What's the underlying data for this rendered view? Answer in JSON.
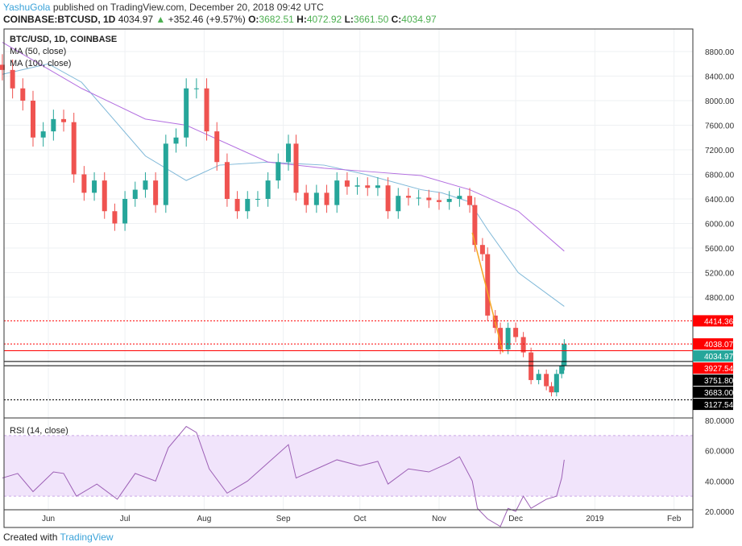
{
  "header": {
    "author": "YashuGola",
    "published": "published on TradingView.com, December 20, 2018 09:42 UTC",
    "symbol": "COINBASE:BTCUSD, 1D",
    "last": "4034.97",
    "change": "+352.46 (+9.57%)",
    "o_label": "O:",
    "o": "3682.51",
    "h_label": "H:",
    "h": "4072.92",
    "l_label": "L:",
    "l": "3661.50",
    "c_label": "C:",
    "c": "4034.97"
  },
  "legend": {
    "title": "BTC/USD, 1D, COINBASE",
    "ma50": "MA (50, close)",
    "ma100": "MA (100, close)",
    "rsi": "RSI (14, close)"
  },
  "footer": {
    "created": "Created with",
    "brand": "TradingView"
  },
  "colors": {
    "up": "#26a69a",
    "down": "#ef5350",
    "ma50": "#7fb8d8",
    "ma100": "#b36fe0",
    "rsi": "#9c5fb5",
    "rsi_band": "#f1e4fb",
    "level_red": "#ff0000",
    "level_black": "#000000",
    "trend": "#f5a623"
  },
  "chart_data": [
    {
      "type": "candlestick",
      "title": "BTC/USD, 1D, COINBASE",
      "ylim": [
        2900,
        9200
      ],
      "y_ticks": [
        "8800.00",
        "8400.00",
        "8000.00",
        "7600.00",
        "7200.00",
        "6800.00",
        "6400.00",
        "6000.00",
        "5600.00",
        "5200.00",
        "4800.00"
      ],
      "x_ticks": [
        "Jun",
        "Jul",
        "Aug",
        "Sep",
        "Oct",
        "Nov",
        "Dec",
        "2019",
        "Feb"
      ],
      "x_tick_dates": [
        "2018-06-01",
        "2018-07-01",
        "2018-08-01",
        "2018-09-01",
        "2018-10-01",
        "2018-11-01",
        "2018-12-01",
        "2019-01-01",
        "2019-02-01"
      ],
      "xlim": [
        "2018-05-14",
        "2019-02-20"
      ],
      "grid": true,
      "closes": [
        [
          "2018-05-14",
          8500
        ],
        [
          "2018-05-18",
          8200
        ],
        [
          "2018-05-22",
          8000
        ],
        [
          "2018-05-26",
          7400
        ],
        [
          "2018-05-30",
          7500
        ],
        [
          "2018-06-03",
          7700
        ],
        [
          "2018-06-07",
          7650
        ],
        [
          "2018-06-11",
          6800
        ],
        [
          "2018-06-15",
          6500
        ],
        [
          "2018-06-19",
          6700
        ],
        [
          "2018-06-23",
          6200
        ],
        [
          "2018-06-27",
          6000
        ],
        [
          "2018-07-01",
          6400
        ],
        [
          "2018-07-05",
          6550
        ],
        [
          "2018-07-09",
          6700
        ],
        [
          "2018-07-13",
          6300
        ],
        [
          "2018-07-17",
          7300
        ],
        [
          "2018-07-21",
          7400
        ],
        [
          "2018-07-25",
          8200
        ],
        [
          "2018-07-29",
          8200
        ],
        [
          "2018-08-02",
          7500
        ],
        [
          "2018-08-06",
          7000
        ],
        [
          "2018-08-10",
          6400
        ],
        [
          "2018-08-14",
          6200
        ],
        [
          "2018-08-18",
          6400
        ],
        [
          "2018-08-22",
          6400
        ],
        [
          "2018-08-26",
          6700
        ],
        [
          "2018-08-30",
          7000
        ],
        [
          "2018-09-03",
          7300
        ],
        [
          "2018-09-06",
          6500
        ],
        [
          "2018-09-10",
          6300
        ],
        [
          "2018-09-14",
          6500
        ],
        [
          "2018-09-18",
          6300
        ],
        [
          "2018-09-22",
          6700
        ],
        [
          "2018-09-26",
          6600
        ],
        [
          "2018-09-30",
          6620
        ],
        [
          "2018-10-04",
          6580
        ],
        [
          "2018-10-08",
          6620
        ],
        [
          "2018-10-12",
          6200
        ],
        [
          "2018-10-16",
          6450
        ],
        [
          "2018-10-20",
          6420
        ],
        [
          "2018-10-24",
          6420
        ],
        [
          "2018-10-28",
          6380
        ],
        [
          "2018-11-01",
          6350
        ],
        [
          "2018-11-05",
          6400
        ],
        [
          "2018-11-09",
          6450
        ],
        [
          "2018-11-13",
          6300
        ],
        [
          "2018-11-15",
          5650
        ],
        [
          "2018-11-18",
          5500
        ],
        [
          "2018-11-20",
          4500
        ],
        [
          "2018-11-23",
          4300
        ],
        [
          "2018-11-25",
          3950
        ],
        [
          "2018-11-28",
          4300
        ],
        [
          "2018-12-01",
          4150
        ],
        [
          "2018-12-04",
          3900
        ],
        [
          "2018-12-07",
          3450
        ],
        [
          "2018-12-10",
          3550
        ],
        [
          "2018-12-13",
          3350
        ],
        [
          "2018-12-15",
          3250
        ],
        [
          "2018-12-17",
          3550
        ],
        [
          "2018-12-19",
          3682.51
        ],
        [
          "2018-12-20",
          4034.97
        ]
      ],
      "series": [
        {
          "name": "MA (50, close)",
          "points": [
            [
              "2018-05-14",
              8430
            ],
            [
              "2018-06-01",
              8600
            ],
            [
              "2018-06-14",
              8300
            ],
            [
              "2018-07-09",
              7100
            ],
            [
              "2018-07-25",
              6700
            ],
            [
              "2018-08-07",
              6950
            ],
            [
              "2018-08-26",
              7000
            ],
            [
              "2018-09-17",
              6950
            ],
            [
              "2018-10-03",
              6800
            ],
            [
              "2018-10-25",
              6550
            ],
            [
              "2018-11-02",
              6500
            ],
            [
              "2018-11-13",
              6350
            ],
            [
              "2018-11-20",
              5900
            ],
            [
              "2018-12-02",
              5200
            ],
            [
              "2018-12-20",
              4650
            ]
          ]
        },
        {
          "name": "MA (100, close)",
          "points": [
            [
              "2018-05-14",
              8950
            ],
            [
              "2018-06-14",
              8200
            ],
            [
              "2018-07-09",
              7700
            ],
            [
              "2018-07-25",
              7600
            ],
            [
              "2018-08-26",
              7000
            ],
            [
              "2018-09-17",
              6900
            ],
            [
              "2018-10-03",
              6850
            ],
            [
              "2018-10-25",
              6780
            ],
            [
              "2018-11-13",
              6550
            ],
            [
              "2018-12-02",
              6200
            ],
            [
              "2018-12-20",
              5550
            ]
          ]
        }
      ],
      "levels": [
        {
          "value": "4414.36",
          "color": "#ff0000",
          "style": "dotted"
        },
        {
          "value": "4038.07",
          "color": "#ff0000",
          "style": "dotted"
        },
        {
          "value": "3927.54",
          "color": "#ff0000",
          "style": "solid"
        },
        {
          "value": "3751.80",
          "color": "#000000",
          "style": "solid"
        },
        {
          "value": "3683.00",
          "color": "#000000",
          "style": "solid"
        },
        {
          "value": "3127.54",
          "color": "#000000",
          "style": "dotted"
        }
      ],
      "last_price_label": "4034.97",
      "trend_line": [
        [
          "2018-11-14",
          5850
        ],
        [
          "2018-11-26",
          3900
        ]
      ]
    },
    {
      "type": "line",
      "title": "RSI (14, close)",
      "ylim": [
        5,
        85
      ],
      "y_ticks": [
        "80.0000",
        "60.0000",
        "40.0000",
        "20.0000"
      ],
      "band": [
        30,
        70
      ],
      "points": [
        [
          "2018-05-14",
          42
        ],
        [
          "2018-05-20",
          45
        ],
        [
          "2018-05-26",
          33
        ],
        [
          "2018-06-03",
          46
        ],
        [
          "2018-06-07",
          45
        ],
        [
          "2018-06-12",
          30
        ],
        [
          "2018-06-20",
          38
        ],
        [
          "2018-06-28",
          28
        ],
        [
          "2018-07-05",
          45
        ],
        [
          "2018-07-13",
          40
        ],
        [
          "2018-07-18",
          62
        ],
        [
          "2018-07-25",
          76
        ],
        [
          "2018-07-29",
          72
        ],
        [
          "2018-08-03",
          48
        ],
        [
          "2018-08-10",
          32
        ],
        [
          "2018-08-18",
          40
        ],
        [
          "2018-08-26",
          52
        ],
        [
          "2018-09-03",
          64
        ],
        [
          "2018-09-06",
          42
        ],
        [
          "2018-09-14",
          48
        ],
        [
          "2018-09-22",
          54
        ],
        [
          "2018-10-01",
          50
        ],
        [
          "2018-10-08",
          53
        ],
        [
          "2018-10-12",
          38
        ],
        [
          "2018-10-20",
          48
        ],
        [
          "2018-10-28",
          46
        ],
        [
          "2018-11-05",
          52
        ],
        [
          "2018-11-09",
          56
        ],
        [
          "2018-11-14",
          40
        ],
        [
          "2018-11-16",
          22
        ],
        [
          "2018-11-20",
          15
        ],
        [
          "2018-11-25",
          10
        ],
        [
          "2018-11-28",
          22
        ],
        [
          "2018-12-01",
          20
        ],
        [
          "2018-12-04",
          30
        ],
        [
          "2018-12-07",
          22
        ],
        [
          "2018-12-13",
          28
        ],
        [
          "2018-12-17",
          30
        ],
        [
          "2018-12-19",
          42
        ],
        [
          "2018-12-20",
          54
        ]
      ]
    }
  ]
}
